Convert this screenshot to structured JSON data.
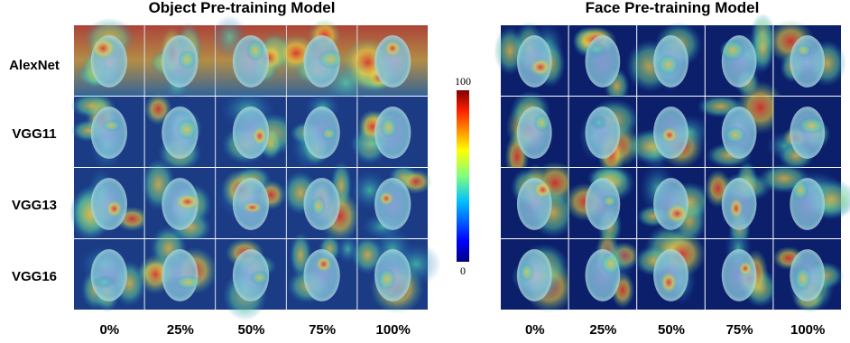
{
  "panels": [
    {
      "title": "Object Pre-training Model",
      "rows": [
        "AlexNet",
        "VGG11",
        "VGG13",
        "VGG16"
      ],
      "columns": [
        "0%",
        "25%",
        "50%",
        "75%",
        "100%"
      ]
    },
    {
      "title": "Face Pre-training Model",
      "columns": [
        "0%",
        "25%",
        "50%",
        "75%",
        "100%"
      ]
    }
  ],
  "colorbar": {
    "top_label": "100",
    "bottom_label": "0"
  }
}
